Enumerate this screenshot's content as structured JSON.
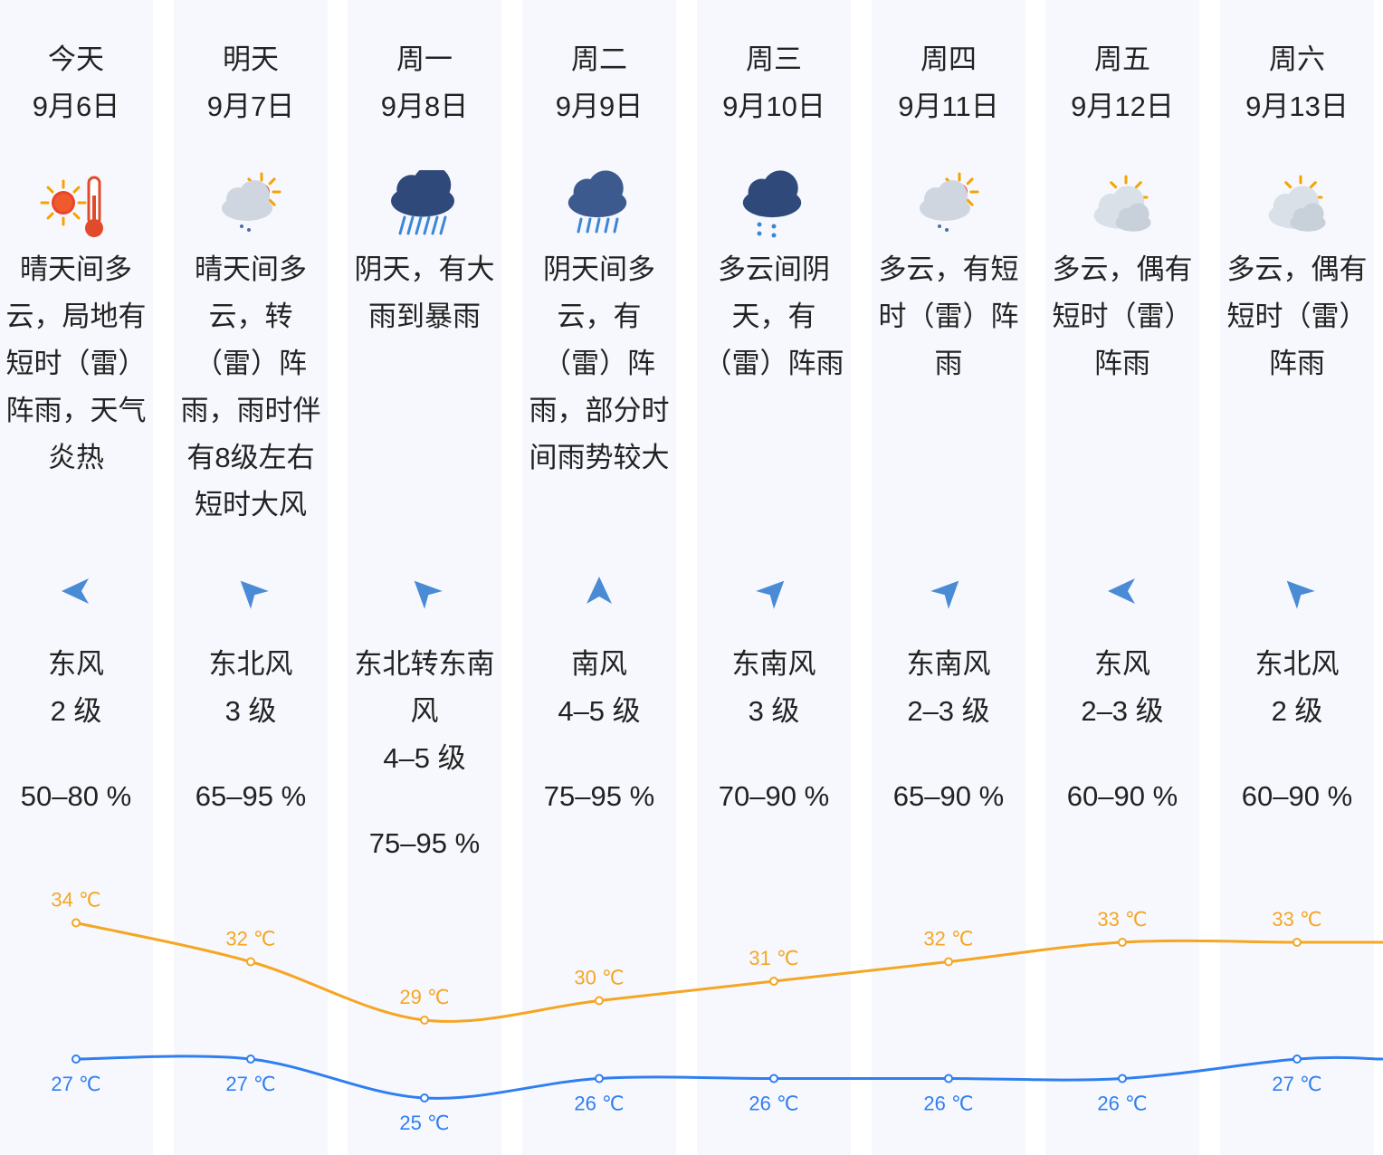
{
  "days": [
    {
      "day": "今天",
      "date": "9月6日",
      "icon": "sunny-hot-thermometer-icon",
      "desc": "晴天间多云，局地有短时（雷）阵雨，天气炎热",
      "wind_dir": "东风",
      "wind_level": "2 级",
      "wind_arrow_deg": 180,
      "humidity": "50–80 %"
    },
    {
      "day": "明天",
      "date": "9月7日",
      "icon": "partly-cloudy-rain-icon",
      "desc": "晴天间多云，转（雷）阵雨，雨时伴有8级左右短时大风",
      "wind_dir": "东北风",
      "wind_level": "3 级",
      "wind_arrow_deg": 225,
      "humidity": "65–95 %"
    },
    {
      "day": "周一",
      "date": "9月8日",
      "icon": "heavy-rain-icon",
      "desc": "阴天，有大雨到暴雨",
      "wind_dir": "东北转东南风",
      "wind_level": "4–5 级",
      "wind_arrow_deg": 225,
      "humidity": "75–95 %"
    },
    {
      "day": "周二",
      "date": "9月9日",
      "icon": "rain-shower-icon",
      "desc": "阴天间多云，有（雷）阵雨，部分时间雨势较大",
      "wind_dir": "南风",
      "wind_level": "4–5 级",
      "wind_arrow_deg": 270,
      "humidity": "75–95 %"
    },
    {
      "day": "周三",
      "date": "9月10日",
      "icon": "cloud-light-rain-icon",
      "desc": "多云间阴天，有（雷）阵雨",
      "wind_dir": "东南风",
      "wind_level": "3 级",
      "wind_arrow_deg": 315,
      "humidity": "70–90 %"
    },
    {
      "day": "周四",
      "date": "9月11日",
      "icon": "partly-cloudy-rain-icon",
      "desc": "多云，有短时（雷）阵雨",
      "wind_dir": "东南风",
      "wind_level": "2–3 级",
      "wind_arrow_deg": 315,
      "humidity": "65–90 %"
    },
    {
      "day": "周五",
      "date": "9月12日",
      "icon": "partly-cloudy-icon",
      "desc": "多云，偶有短时（雷）阵雨",
      "wind_dir": "东风",
      "wind_level": "2–3 级",
      "wind_arrow_deg": 180,
      "humidity": "60–90 %"
    },
    {
      "day": "周六",
      "date": "9月13日",
      "icon": "partly-cloudy-icon",
      "desc": "多云，偶有短时（雷）阵雨",
      "wind_dir": "东北风",
      "wind_level": "2 级",
      "wind_arrow_deg": 225,
      "humidity": "60–90 %"
    }
  ],
  "chart_data": {
    "type": "line",
    "categories": [
      "今天",
      "明天",
      "周一",
      "周二",
      "周三",
      "周四",
      "周五",
      "周六"
    ],
    "series": [
      {
        "values": [
          34,
          32,
          29,
          30,
          31,
          32,
          33,
          33
        ],
        "labels": [
          "34 ℃",
          "32 ℃",
          "29 ℃",
          "30 ℃",
          "31 ℃",
          "32 ℃",
          "33 ℃",
          "33 ℃"
        ],
        "color": "#f5a623"
      },
      {
        "values": [
          27,
          27,
          25,
          26,
          26,
          26,
          26,
          27
        ],
        "labels": [
          "27 ℃",
          "27 ℃",
          "25 ℃",
          "26 ℃",
          "26 ℃",
          "26 ℃",
          "26 ℃",
          "27 ℃"
        ],
        "color": "#2f7ff0"
      }
    ]
  },
  "colors": {
    "high": "#f5a623",
    "low": "#2f7ff0",
    "arrow": "#4a8bd6",
    "column_bg": "#f7f8fd"
  }
}
